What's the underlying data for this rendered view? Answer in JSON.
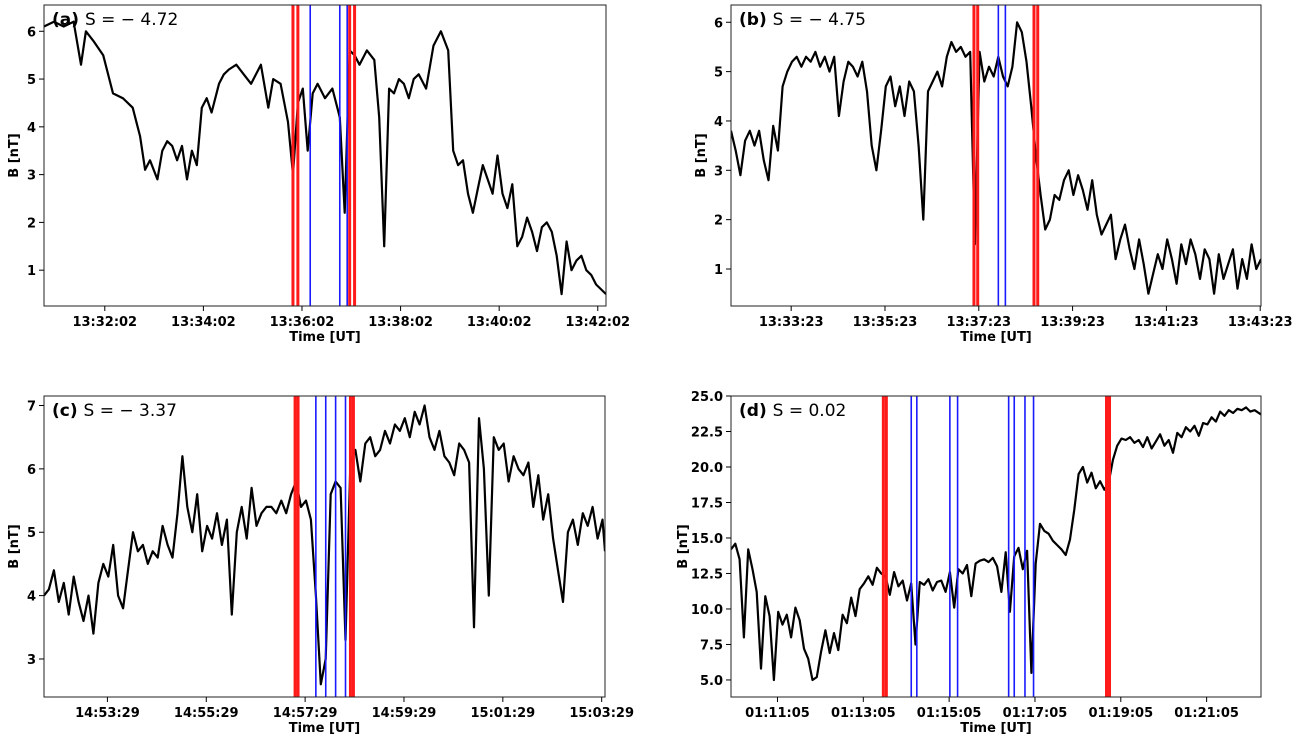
{
  "chart_data": [
    {
      "type": "line",
      "label": "(a)",
      "s_text": "S = − 4.72",
      "xlabel": "Time [UT]",
      "ylabel": "B [nT]",
      "x_unit": "minutes after 13:30:00 UT",
      "xlim": [
        30.8,
        42.2
      ],
      "ylim": [
        0.25,
        6.55
      ],
      "xticks": [
        32.033,
        34.033,
        36.033,
        38.033,
        40.033,
        42.033
      ],
      "xtick_labels": [
        "13:32:02",
        "13:34:02",
        "13:36:02",
        "13:38:02",
        "13:40:02",
        "13:42:02"
      ],
      "yticks": [
        1,
        2,
        3,
        4,
        5,
        6
      ],
      "ytick_labels": [
        "1",
        "2",
        "3",
        "4",
        "5",
        "6"
      ],
      "red_lines": [
        35.85,
        35.95,
        37.0,
        37.1
      ],
      "blue_lines": [
        36.2,
        36.8,
        36.95
      ],
      "series": [
        {
          "x": [
            30.8,
            31.0,
            31.2,
            31.4,
            31.55,
            31.65,
            31.8,
            32.0,
            32.2,
            32.4,
            32.6,
            32.75,
            32.85,
            32.95,
            33.1,
            33.2,
            33.3,
            33.4,
            33.5,
            33.6,
            33.7,
            33.8,
            33.9,
            34.0,
            34.1,
            34.2,
            34.35,
            34.45,
            34.55,
            34.7,
            34.85,
            35.0,
            35.2,
            35.35,
            35.45,
            35.6,
            35.75,
            35.85,
            35.95,
            36.05,
            36.15,
            36.25,
            36.35,
            36.5,
            36.65,
            36.8,
            36.9,
            37.0,
            37.1,
            37.2,
            37.35,
            37.5,
            37.6,
            37.7,
            37.8,
            37.9,
            38.0,
            38.1,
            38.2,
            38.3,
            38.4,
            38.55,
            38.7,
            38.85,
            39.0,
            39.1,
            39.2,
            39.3,
            39.4,
            39.5,
            39.6,
            39.7,
            39.8,
            39.9,
            40.0,
            40.1,
            40.2,
            40.3,
            40.4,
            40.5,
            40.6,
            40.7,
            40.8,
            40.9,
            41.0,
            41.1,
            41.2,
            41.3,
            41.4,
            41.5,
            41.6,
            41.7,
            41.8,
            41.9,
            42.0,
            42.2
          ],
          "y": [
            6.1,
            6.2,
            6.1,
            6.2,
            5.3,
            6.0,
            5.8,
            5.5,
            4.7,
            4.6,
            4.4,
            3.8,
            3.1,
            3.3,
            2.9,
            3.5,
            3.7,
            3.6,
            3.3,
            3.6,
            2.9,
            3.5,
            3.2,
            4.4,
            4.6,
            4.3,
            4.9,
            5.1,
            5.2,
            5.3,
            5.1,
            4.9,
            5.3,
            4.4,
            5.0,
            4.9,
            4.1,
            3.0,
            4.5,
            4.8,
            3.5,
            4.7,
            4.9,
            4.6,
            4.8,
            4.2,
            2.2,
            5.6,
            5.5,
            5.3,
            5.6,
            5.4,
            4.2,
            1.5,
            4.8,
            4.7,
            5.0,
            4.9,
            4.6,
            5.0,
            5.1,
            4.8,
            5.7,
            6.0,
            5.6,
            3.5,
            3.2,
            3.3,
            2.6,
            2.2,
            2.7,
            3.2,
            2.9,
            2.6,
            3.4,
            2.6,
            2.3,
            2.8,
            1.5,
            1.7,
            2.1,
            1.8,
            1.4,
            1.9,
            2.0,
            1.8,
            1.3,
            0.5,
            1.6,
            1.0,
            1.2,
            1.3,
            1.0,
            0.9,
            0.7,
            0.5
          ]
        }
      ]
    },
    {
      "type": "line",
      "label": "(b)",
      "s_text": "S = − 4.75",
      "xlabel": "Time [UT]",
      "ylabel": "B [nT]",
      "x_unit": "minutes after 13:30:00 UT",
      "xlim": [
        32.1,
        43.4
      ],
      "ylim": [
        0.25,
        6.35
      ],
      "xticks": [
        33.383,
        35.383,
        37.383,
        39.383,
        41.383,
        43.383
      ],
      "xtick_labels": [
        "13:33:23",
        "13:35:23",
        "13:37:23",
        "13:39:23",
        "13:41:23",
        "13:43:23"
      ],
      "yticks": [
        1,
        2,
        3,
        4,
        5,
        6
      ],
      "ytick_labels": [
        "1",
        "2",
        "3",
        "4",
        "5",
        "6"
      ],
      "red_lines": [
        37.28,
        37.36,
        38.56,
        38.64
      ],
      "blue_lines": [
        37.8,
        37.95
      ],
      "series": [
        {
          "x": [
            32.1,
            32.2,
            32.3,
            32.4,
            32.5,
            32.6,
            32.7,
            32.8,
            32.9,
            33.0,
            33.1,
            33.2,
            33.3,
            33.4,
            33.5,
            33.6,
            33.7,
            33.8,
            33.9,
            34.0,
            34.1,
            34.2,
            34.3,
            34.4,
            34.5,
            34.6,
            34.7,
            34.8,
            34.9,
            35.0,
            35.1,
            35.2,
            35.3,
            35.4,
            35.5,
            35.6,
            35.7,
            35.8,
            35.9,
            36.0,
            36.1,
            36.2,
            36.3,
            36.4,
            36.5,
            36.6,
            36.7,
            36.8,
            36.9,
            37.0,
            37.1,
            37.2,
            37.3,
            37.4,
            37.5,
            37.6,
            37.7,
            37.8,
            37.9,
            38.0,
            38.1,
            38.2,
            38.3,
            38.4,
            38.5,
            38.6,
            38.7,
            38.8,
            38.9,
            39.0,
            39.1,
            39.2,
            39.3,
            39.4,
            39.5,
            39.6,
            39.7,
            39.8,
            39.9,
            40.0,
            40.1,
            40.2,
            40.3,
            40.4,
            40.5,
            40.6,
            40.7,
            40.8,
            40.9,
            41.0,
            41.1,
            41.2,
            41.3,
            41.4,
            41.5,
            41.6,
            41.7,
            41.8,
            41.9,
            42.0,
            42.1,
            42.2,
            42.3,
            42.4,
            42.5,
            42.6,
            42.7,
            42.8,
            42.9,
            43.0,
            43.1,
            43.2,
            43.3,
            43.4
          ],
          "y": [
            3.8,
            3.4,
            2.9,
            3.6,
            3.8,
            3.5,
            3.8,
            3.2,
            2.8,
            3.9,
            3.4,
            4.7,
            5.0,
            5.2,
            5.3,
            5.1,
            5.3,
            5.2,
            5.4,
            5.1,
            5.3,
            5.0,
            5.3,
            4.1,
            4.8,
            5.2,
            5.1,
            4.9,
            5.2,
            4.6,
            3.5,
            3.0,
            3.8,
            4.7,
            4.9,
            4.3,
            4.7,
            4.1,
            4.8,
            4.6,
            3.5,
            2.0,
            4.6,
            4.8,
            5.0,
            4.7,
            5.3,
            5.6,
            5.4,
            5.5,
            5.3,
            5.4,
            1.5,
            5.4,
            4.8,
            5.1,
            4.9,
            5.3,
            4.9,
            4.7,
            5.1,
            6.0,
            5.8,
            5.2,
            4.3,
            3.3,
            2.5,
            1.8,
            2.0,
            2.5,
            2.4,
            2.8,
            3.0,
            2.5,
            2.9,
            2.6,
            2.2,
            2.8,
            2.1,
            1.7,
            1.9,
            2.1,
            1.2,
            1.6,
            1.9,
            1.4,
            1.0,
            1.6,
            1.1,
            0.5,
            0.9,
            1.3,
            1.0,
            1.6,
            1.2,
            0.7,
            1.5,
            1.1,
            1.6,
            1.3,
            0.8,
            1.4,
            1.2,
            0.5,
            1.3,
            0.8,
            1.1,
            1.4,
            0.6,
            1.2,
            0.8,
            1.5,
            1.0,
            1.2
          ]
        }
      ]
    },
    {
      "type": "line",
      "label": "(c)",
      "s_text": "S = − 3.37",
      "xlabel": "Time [UT]",
      "ylabel": "B [nT]",
      "x_unit": "minutes after 14:50:00 UT",
      "xlim": [
        2.2,
        13.55
      ],
      "ylim": [
        2.4,
        7.15
      ],
      "xticks": [
        3.483,
        5.483,
        7.483,
        9.483,
        11.483,
        13.483
      ],
      "xtick_labels": [
        "14:53:29",
        "14:55:29",
        "14:57:29",
        "14:59:29",
        "15:01:29",
        "15:03:29"
      ],
      "yticks": [
        3,
        4,
        5,
        6,
        7
      ],
      "ytick_labels": [
        "3",
        "4",
        "5",
        "6",
        "7"
      ],
      "red_lines": [
        7.28,
        7.34,
        8.4,
        8.46
      ],
      "blue_lines": [
        7.7,
        7.9,
        8.1,
        8.3
      ],
      "series": [
        {
          "x": [
            2.2,
            2.3,
            2.4,
            2.5,
            2.6,
            2.7,
            2.8,
            2.9,
            3.0,
            3.1,
            3.2,
            3.3,
            3.4,
            3.5,
            3.6,
            3.7,
            3.8,
            3.9,
            4.0,
            4.1,
            4.2,
            4.3,
            4.4,
            4.5,
            4.6,
            4.7,
            4.8,
            4.9,
            5.0,
            5.1,
            5.2,
            5.3,
            5.4,
            5.5,
            5.6,
            5.7,
            5.8,
            5.9,
            6.0,
            6.1,
            6.2,
            6.3,
            6.4,
            6.5,
            6.6,
            6.7,
            6.8,
            6.9,
            7.0,
            7.1,
            7.2,
            7.3,
            7.4,
            7.5,
            7.6,
            7.7,
            7.8,
            7.9,
            8.0,
            8.1,
            8.2,
            8.3,
            8.4,
            8.5,
            8.6,
            8.7,
            8.8,
            8.9,
            9.0,
            9.1,
            9.2,
            9.3,
            9.4,
            9.5,
            9.6,
            9.7,
            9.8,
            9.9,
            10.0,
            10.1,
            10.2,
            10.3,
            10.4,
            10.5,
            10.6,
            10.7,
            10.8,
            10.9,
            11.0,
            11.1,
            11.2,
            11.3,
            11.4,
            11.5,
            11.6,
            11.7,
            11.8,
            11.9,
            12.0,
            12.1,
            12.2,
            12.3,
            12.4,
            12.5,
            12.6,
            12.7,
            12.8,
            12.9,
            13.0,
            13.1,
            13.2,
            13.3,
            13.4,
            13.5,
            13.55
          ],
          "y": [
            4.0,
            4.1,
            4.4,
            3.9,
            4.2,
            3.7,
            4.3,
            3.9,
            3.6,
            4.0,
            3.4,
            4.2,
            4.5,
            4.3,
            4.8,
            4.0,
            3.8,
            4.4,
            5.0,
            4.7,
            4.8,
            4.5,
            4.7,
            4.6,
            5.1,
            4.8,
            4.6,
            5.3,
            6.2,
            5.4,
            5.0,
            5.6,
            4.7,
            5.1,
            4.9,
            5.3,
            4.8,
            5.2,
            3.7,
            5.0,
            5.4,
            4.9,
            5.7,
            5.1,
            5.3,
            5.4,
            5.4,
            5.3,
            5.5,
            5.3,
            5.6,
            5.8,
            5.4,
            5.5,
            5.2,
            4.0,
            2.6,
            3.0,
            5.6,
            5.8,
            5.7,
            3.3,
            6.1,
            6.3,
            5.8,
            6.4,
            6.5,
            6.2,
            6.3,
            6.6,
            6.4,
            6.7,
            6.6,
            6.8,
            6.5,
            6.9,
            6.7,
            7.0,
            6.5,
            6.3,
            6.6,
            6.2,
            6.1,
            5.9,
            6.4,
            6.3,
            6.1,
            3.5,
            6.8,
            6.0,
            4.0,
            6.5,
            6.3,
            6.4,
            5.8,
            6.2,
            6.0,
            5.9,
            6.1,
            5.4,
            5.9,
            5.2,
            5.6,
            4.9,
            4.4,
            3.9,
            5.0,
            5.2,
            4.8,
            5.3,
            5.1,
            5.4,
            4.9,
            5.2,
            4.7
          ]
        }
      ]
    },
    {
      "type": "line",
      "label": "(d)",
      "s_text": "S = 0.02",
      "xlabel": "Time [UT]",
      "ylabel": "B [nT]",
      "x_unit": "minutes after 01:10:00 UT",
      "xlim": [
        0.0,
        12.35
      ],
      "ylim": [
        3.8,
        25.0
      ],
      "xticks": [
        1.083,
        3.083,
        5.083,
        7.083,
        9.083,
        11.083
      ],
      "xtick_labels": [
        "01:11:05",
        "01:13:05",
        "01:15:05",
        "01:17:05",
        "01:19:05",
        "01:21:05"
      ],
      "yticks": [
        5.0,
        7.5,
        10.0,
        12.5,
        15.0,
        17.5,
        20.0,
        22.5,
        25.0
      ],
      "ytick_labels": [
        "5.0",
        "7.5",
        "10.0",
        "12.5",
        "15.0",
        "17.5",
        "20.0",
        "22.5",
        "25.0"
      ],
      "red_lines": [
        3.55,
        3.62,
        8.75,
        8.82
      ],
      "blue_lines": [
        4.2,
        4.33,
        5.1,
        5.28,
        6.47,
        6.6,
        6.85,
        7.05
      ],
      "series": [
        {
          "x": [
            0.0,
            0.1,
            0.2,
            0.3,
            0.4,
            0.5,
            0.6,
            0.7,
            0.8,
            0.9,
            1.0,
            1.1,
            1.2,
            1.3,
            1.4,
            1.5,
            1.6,
            1.7,
            1.8,
            1.9,
            2.0,
            2.1,
            2.2,
            2.3,
            2.4,
            2.5,
            2.6,
            2.7,
            2.8,
            2.9,
            3.0,
            3.1,
            3.2,
            3.3,
            3.4,
            3.5,
            3.6,
            3.7,
            3.8,
            3.9,
            4.0,
            4.1,
            4.2,
            4.3,
            4.4,
            4.5,
            4.6,
            4.7,
            4.8,
            4.9,
            5.0,
            5.1,
            5.2,
            5.3,
            5.4,
            5.5,
            5.6,
            5.7,
            5.8,
            5.9,
            6.0,
            6.1,
            6.2,
            6.3,
            6.4,
            6.5,
            6.6,
            6.7,
            6.8,
            6.9,
            7.0,
            7.1,
            7.2,
            7.3,
            7.4,
            7.5,
            7.6,
            7.7,
            7.8,
            7.9,
            8.0,
            8.1,
            8.2,
            8.3,
            8.4,
            8.5,
            8.6,
            8.7,
            8.8,
            8.9,
            9.0,
            9.1,
            9.2,
            9.3,
            9.4,
            9.5,
            9.6,
            9.7,
            9.8,
            9.9,
            10.0,
            10.1,
            10.2,
            10.3,
            10.4,
            10.5,
            10.6,
            10.7,
            10.8,
            10.9,
            11.0,
            11.1,
            11.2,
            11.3,
            11.4,
            11.5,
            11.6,
            11.7,
            11.8,
            11.9,
            12.0,
            12.1,
            12.2,
            12.35
          ],
          "y": [
            14.2,
            14.6,
            13.5,
            8.0,
            14.2,
            12.8,
            11.2,
            5.8,
            10.9,
            9.5,
            5.0,
            9.8,
            8.9,
            9.6,
            8.0,
            10.1,
            9.2,
            7.2,
            6.5,
            5.0,
            5.2,
            7.0,
            8.5,
            6.9,
            8.3,
            7.1,
            9.6,
            9.0,
            10.8,
            9.5,
            11.4,
            11.8,
            12.3,
            11.7,
            12.9,
            12.5,
            12.3,
            11.0,
            12.6,
            11.6,
            12.0,
            10.6,
            11.8,
            7.5,
            11.9,
            11.7,
            12.1,
            11.3,
            11.9,
            12.0,
            11.2,
            12.6,
            10.1,
            12.8,
            12.5,
            13.1,
            10.9,
            13.2,
            13.4,
            13.5,
            13.3,
            13.6,
            13.0,
            11.2,
            14.0,
            9.8,
            13.7,
            14.3,
            12.8,
            14.1,
            5.5,
            13.2,
            16.0,
            15.5,
            15.3,
            14.8,
            14.5,
            14.2,
            13.8,
            14.9,
            17.0,
            19.5,
            20.0,
            18.9,
            19.6,
            18.5,
            19.0,
            18.4,
            18.9,
            20.5,
            21.5,
            22.0,
            21.9,
            22.1,
            21.7,
            21.9,
            21.4,
            22.1,
            21.3,
            21.8,
            22.3,
            21.5,
            21.9,
            21.0,
            22.4,
            22.1,
            22.8,
            22.5,
            22.9,
            22.2,
            23.1,
            23.0,
            23.5,
            23.2,
            23.9,
            23.6,
            24.0,
            23.8,
            24.1,
            24.0,
            24.2,
            23.9,
            24.0,
            23.7
          ]
        }
      ]
    }
  ]
}
